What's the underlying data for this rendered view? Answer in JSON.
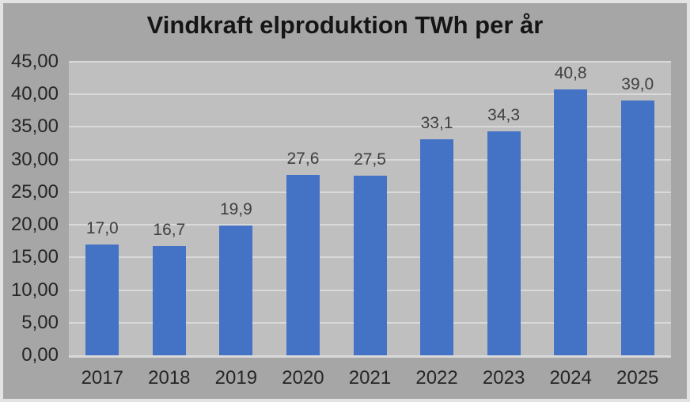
{
  "chart_data": {
    "type": "bar",
    "title": "Vindkraft elproduktion TWh per år",
    "categories": [
      "2017",
      "2018",
      "2019",
      "2020",
      "2021",
      "2022",
      "2023",
      "2024",
      "2025"
    ],
    "values": [
      17.0,
      16.7,
      19.9,
      27.6,
      27.5,
      33.1,
      34.3,
      40.8,
      39.0
    ],
    "value_labels": [
      "17,0",
      "16,7",
      "19,9",
      "27,6",
      "27,5",
      "33,1",
      "34,3",
      "40,8",
      "39,0"
    ],
    "xlabel": "",
    "ylabel": "",
    "ylim": [
      0,
      45
    ],
    "y_tick_step": 5,
    "y_tick_labels": [
      "0,00",
      "5,00",
      "10,00",
      "15,00",
      "20,00",
      "25,00",
      "30,00",
      "35,00",
      "40,00",
      "45,00"
    ],
    "grid": true,
    "legend": "none",
    "colors": {
      "bar": "#4472c4",
      "chart_background": "#a6a6a6",
      "plot_background": "#bfbfbf",
      "gridline": "#d9d9d9",
      "frame_border": "#e3e3e3",
      "title_text": "#151515",
      "axis_label_text": "#262626",
      "data_label_text": "#404040"
    }
  }
}
